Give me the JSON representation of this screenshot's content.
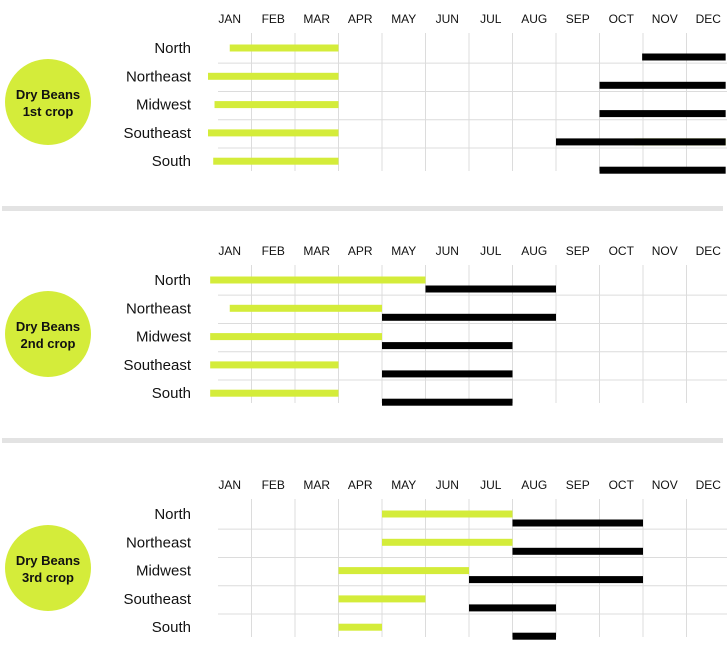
{
  "colors": {
    "background": "#ffffff",
    "planting": "#d4ec3a",
    "harvest": "#000000",
    "badge": "#d4ec3a",
    "grid": "#dcdcdc",
    "divider": "#e3e3e3",
    "text": "#111111"
  },
  "chart_data": [
    {
      "type": "bar",
      "orientation": "horizontal-ranges",
      "title_line1": "Dry Beans",
      "title_line2": "1st crop",
      "months": [
        "JAN",
        "FEB",
        "MAR",
        "APR",
        "MAY",
        "JUN",
        "JUL",
        "AUG",
        "SEP",
        "OCT",
        "NOV",
        "DEC"
      ],
      "xlim": [
        0,
        12
      ],
      "grid": true,
      "regions": [
        {
          "name": "North",
          "planting": [
            [
              0.5,
              3
            ]
          ],
          "harvest": [
            [
              9.98,
              11.9
            ]
          ]
        },
        {
          "name": "Northeast",
          "planting": [
            [
              0,
              3
            ]
          ],
          "harvest": [
            [
              9,
              11.9
            ]
          ]
        },
        {
          "name": "Midwest",
          "planting": [
            [
              0.15,
              3
            ]
          ],
          "harvest": [
            [
              9,
              11.9
            ]
          ]
        },
        {
          "name": "Southeast",
          "planting": [
            [
              0,
              3
            ],
            [
              9.8,
              11.9
            ]
          ],
          "harvest": [
            [
              8,
              11.9
            ]
          ]
        },
        {
          "name": "South",
          "planting": [
            [
              0.12,
              3
            ]
          ],
          "harvest": [
            [
              9,
              11.9
            ]
          ]
        }
      ]
    },
    {
      "type": "bar",
      "orientation": "horizontal-ranges",
      "title_line1": "Dry Beans",
      "title_line2": "2nd crop",
      "months": [
        "JAN",
        "FEB",
        "MAR",
        "APR",
        "MAY",
        "JUN",
        "JUL",
        "AUG",
        "SEP",
        "OCT",
        "NOV",
        "DEC"
      ],
      "xlim": [
        0,
        12
      ],
      "grid": true,
      "regions": [
        {
          "name": "North",
          "planting": [
            [
              0.05,
              5
            ]
          ],
          "harvest": [
            [
              5,
              8
            ]
          ]
        },
        {
          "name": "Northeast",
          "planting": [
            [
              0.5,
              4
            ]
          ],
          "harvest": [
            [
              4,
              8
            ]
          ]
        },
        {
          "name": "Midwest",
          "planting": [
            [
              0.05,
              4
            ]
          ],
          "harvest": [
            [
              4,
              7
            ]
          ]
        },
        {
          "name": "Southeast",
          "planting": [
            [
              0.05,
              3
            ]
          ],
          "harvest": [
            [
              4,
              7
            ]
          ]
        },
        {
          "name": "South",
          "planting": [
            [
              0.05,
              3
            ]
          ],
          "harvest": [
            [
              4,
              7
            ]
          ]
        }
      ]
    },
    {
      "type": "bar",
      "orientation": "horizontal-ranges",
      "title_line1": "Dry Beans",
      "title_line2": "3rd crop",
      "months": [
        "JAN",
        "FEB",
        "MAR",
        "APR",
        "MAY",
        "JUN",
        "JUL",
        "AUG",
        "SEP",
        "OCT",
        "NOV",
        "DEC"
      ],
      "xlim": [
        0,
        12
      ],
      "grid": true,
      "regions": [
        {
          "name": "North",
          "planting": [
            [
              4,
              7
            ]
          ],
          "harvest": [
            [
              7,
              10
            ]
          ]
        },
        {
          "name": "Northeast",
          "planting": [
            [
              4,
              7
            ]
          ],
          "harvest": [
            [
              7,
              10
            ]
          ]
        },
        {
          "name": "Midwest",
          "planting": [
            [
              3,
              6
            ]
          ],
          "harvest": [
            [
              6,
              10
            ]
          ]
        },
        {
          "name": "Southeast",
          "planting": [
            [
              3,
              5
            ]
          ],
          "harvest": [
            [
              6,
              8
            ]
          ]
        },
        {
          "name": "South",
          "planting": [
            [
              3,
              4
            ]
          ],
          "harvest": [
            [
              7,
              8
            ]
          ]
        }
      ]
    }
  ]
}
